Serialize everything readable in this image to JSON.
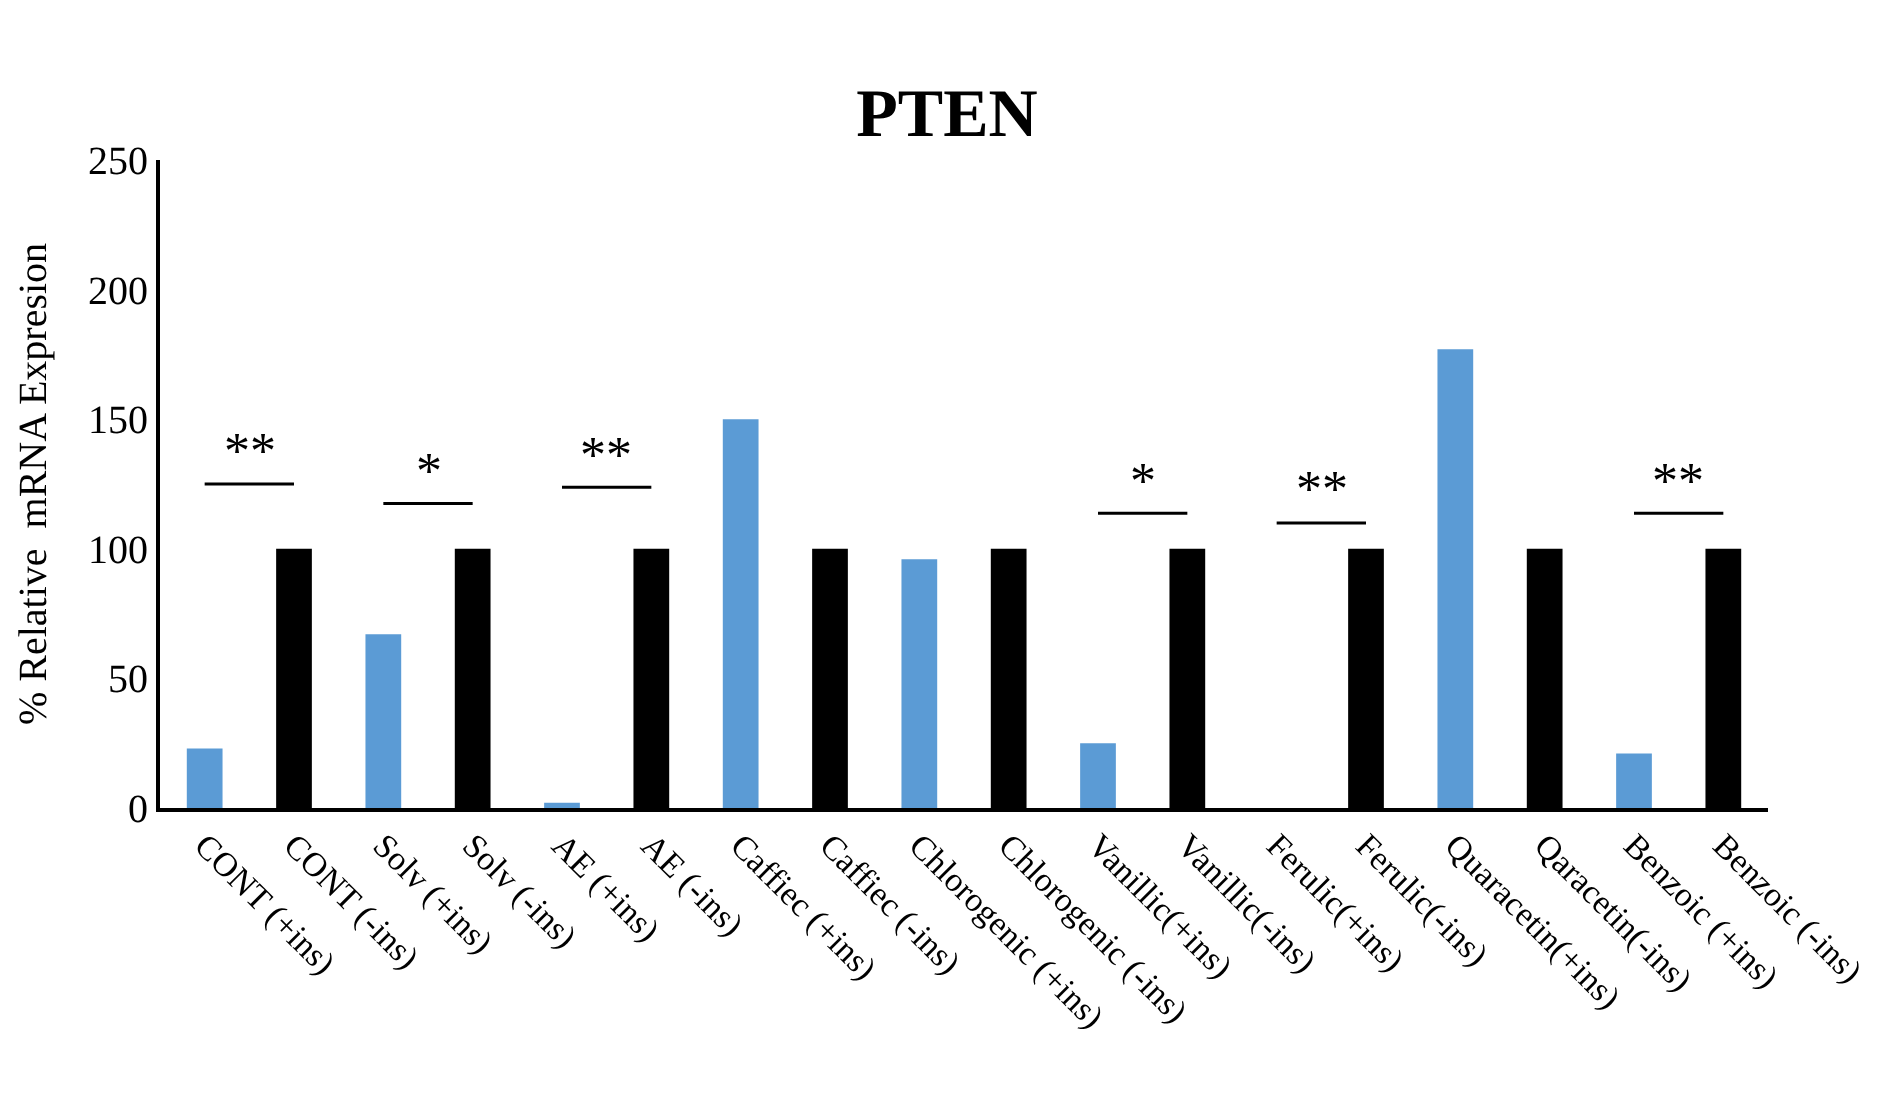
{
  "chart_data": {
    "type": "bar",
    "title": "PTEN",
    "ylabel": "% Relative  mRNA Expresion",
    "categories": [
      "CONT (+ins)",
      "CONT (-ins)",
      "Solv (+ins)",
      "Solv (-ins)",
      "AE (+ins)",
      "AE (-ins)",
      "Caffiec (+ins)",
      "Caffiec (-ins)",
      "Chlorogenic (+ins)",
      "Chlorogenic (-ins)",
      "Vanillic(+ins)",
      "Vanillic(-ins)",
      "Ferulic(+ins)",
      "Ferulic(-ins)",
      "Quaracetin(+ins)",
      "Qaracetin(-ins)",
      "Benzoic (+ins)",
      "Benzoic (-ins)"
    ],
    "values": [
      23,
      100,
      67,
      100,
      2,
      100,
      150,
      100,
      96,
      100,
      25,
      100,
      0,
      100,
      177,
      100,
      21,
      100
    ],
    "colors": [
      "#5b9bd5",
      "#000000",
      "#5b9bd5",
      "#000000",
      "#5b9bd5",
      "#000000",
      "#5b9bd5",
      "#000000",
      "#5b9bd5",
      "#000000",
      "#5b9bd5",
      "#000000",
      "#5b9bd5",
      "#000000",
      "#5b9bd5",
      "#000000",
      "#5b9bd5",
      "#000000"
    ],
    "ylim": [
      0,
      250
    ],
    "yticks": [
      0,
      50,
      100,
      150,
      200,
      250
    ],
    "annotations": [
      "**",
      "*",
      "**",
      "*",
      "**",
      "**"
    ]
  }
}
